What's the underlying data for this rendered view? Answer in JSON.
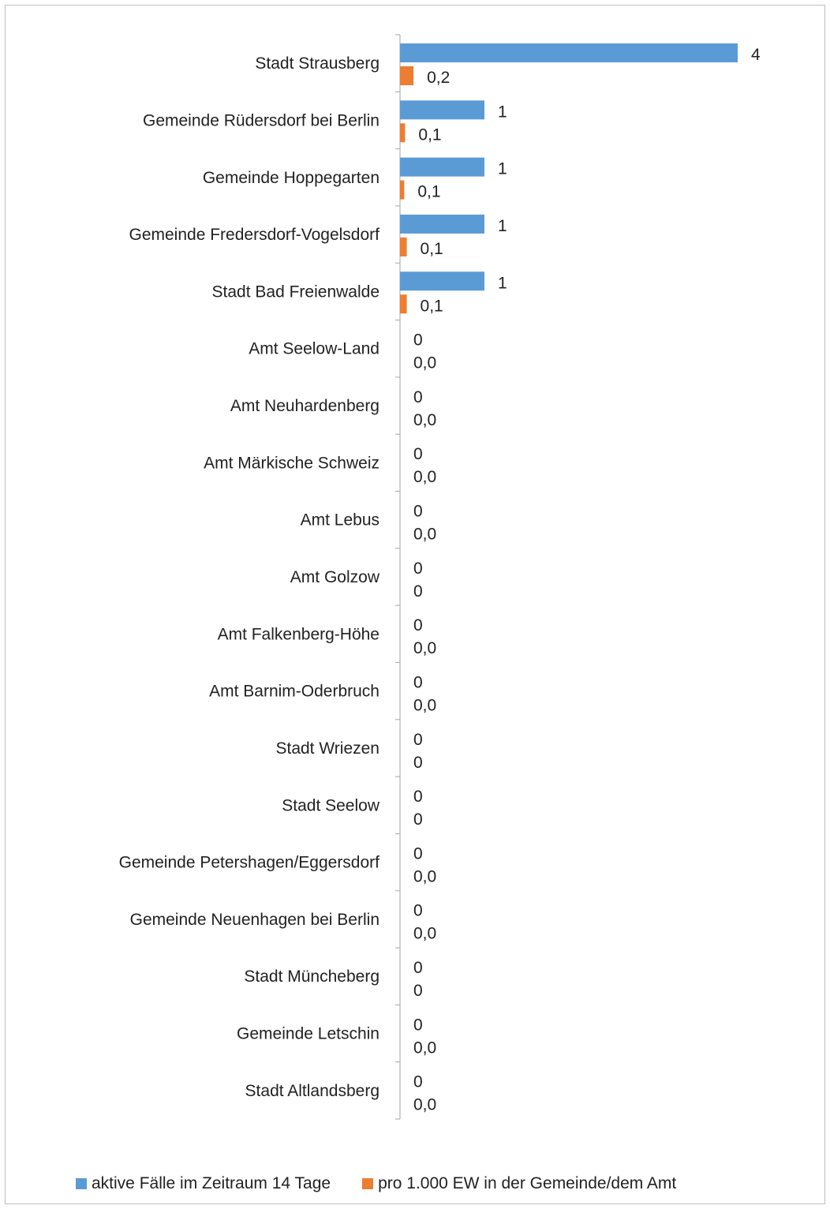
{
  "chart_data": {
    "type": "bar",
    "orientation": "horizontal",
    "categories": [
      "Stadt Strausberg",
      "Gemeinde Rüdersdorf bei Berlin",
      "Gemeinde Hoppegarten",
      "Gemeinde Fredersdorf-Vogelsdorf",
      "Stadt Bad Freienwalde",
      "Amt Seelow-Land",
      "Amt Neuhardenberg",
      "Amt Märkische Schweiz",
      "Amt Lebus",
      "Amt Golzow",
      "Amt Falkenberg-Höhe",
      "Amt Barnim-Oderbruch",
      "Stadt Wriezen",
      "Stadt Seelow",
      "Gemeinde Petershagen/Eggersdorf",
      "Gemeinde Neuenhagen bei Berlin",
      "Stadt Müncheberg",
      "Gemeinde Letschin",
      "Stadt Altlandsberg"
    ],
    "series": [
      {
        "name": "aktive Fälle im Zeitraum 14 Tage",
        "color": "#5b9bd5",
        "values": [
          4,
          1,
          1,
          1,
          1,
          0,
          0,
          0,
          0,
          0,
          0,
          0,
          0,
          0,
          0,
          0,
          0,
          0,
          0
        ],
        "labels": [
          "4",
          "1",
          "1",
          "1",
          "1",
          "0",
          "0",
          "0",
          "0",
          "0",
          "0",
          "0",
          "0",
          "0",
          "0",
          "0",
          "0",
          "0",
          "0"
        ]
      },
      {
        "name": "pro 1.000 EW in der Gemeinde/dem Amt",
        "color": "#ed7d31",
        "values": [
          0.16,
          0.06,
          0.05,
          0.08,
          0.08,
          0,
          0,
          0,
          0,
          0,
          0,
          0,
          0,
          0,
          0,
          0,
          0,
          0,
          0
        ],
        "labels": [
          "0,2",
          "0,1",
          "0,1",
          "0,1",
          "0,1",
          "0,0",
          "0,0",
          "0,0",
          "0,0",
          "0",
          "0,0",
          "0,0",
          "0",
          "0",
          "0,0",
          "0,0",
          "0",
          "0,0",
          "0,0"
        ]
      }
    ],
    "xlim": [
      0,
      4
    ],
    "legend_position": "bottom",
    "grid": false
  }
}
